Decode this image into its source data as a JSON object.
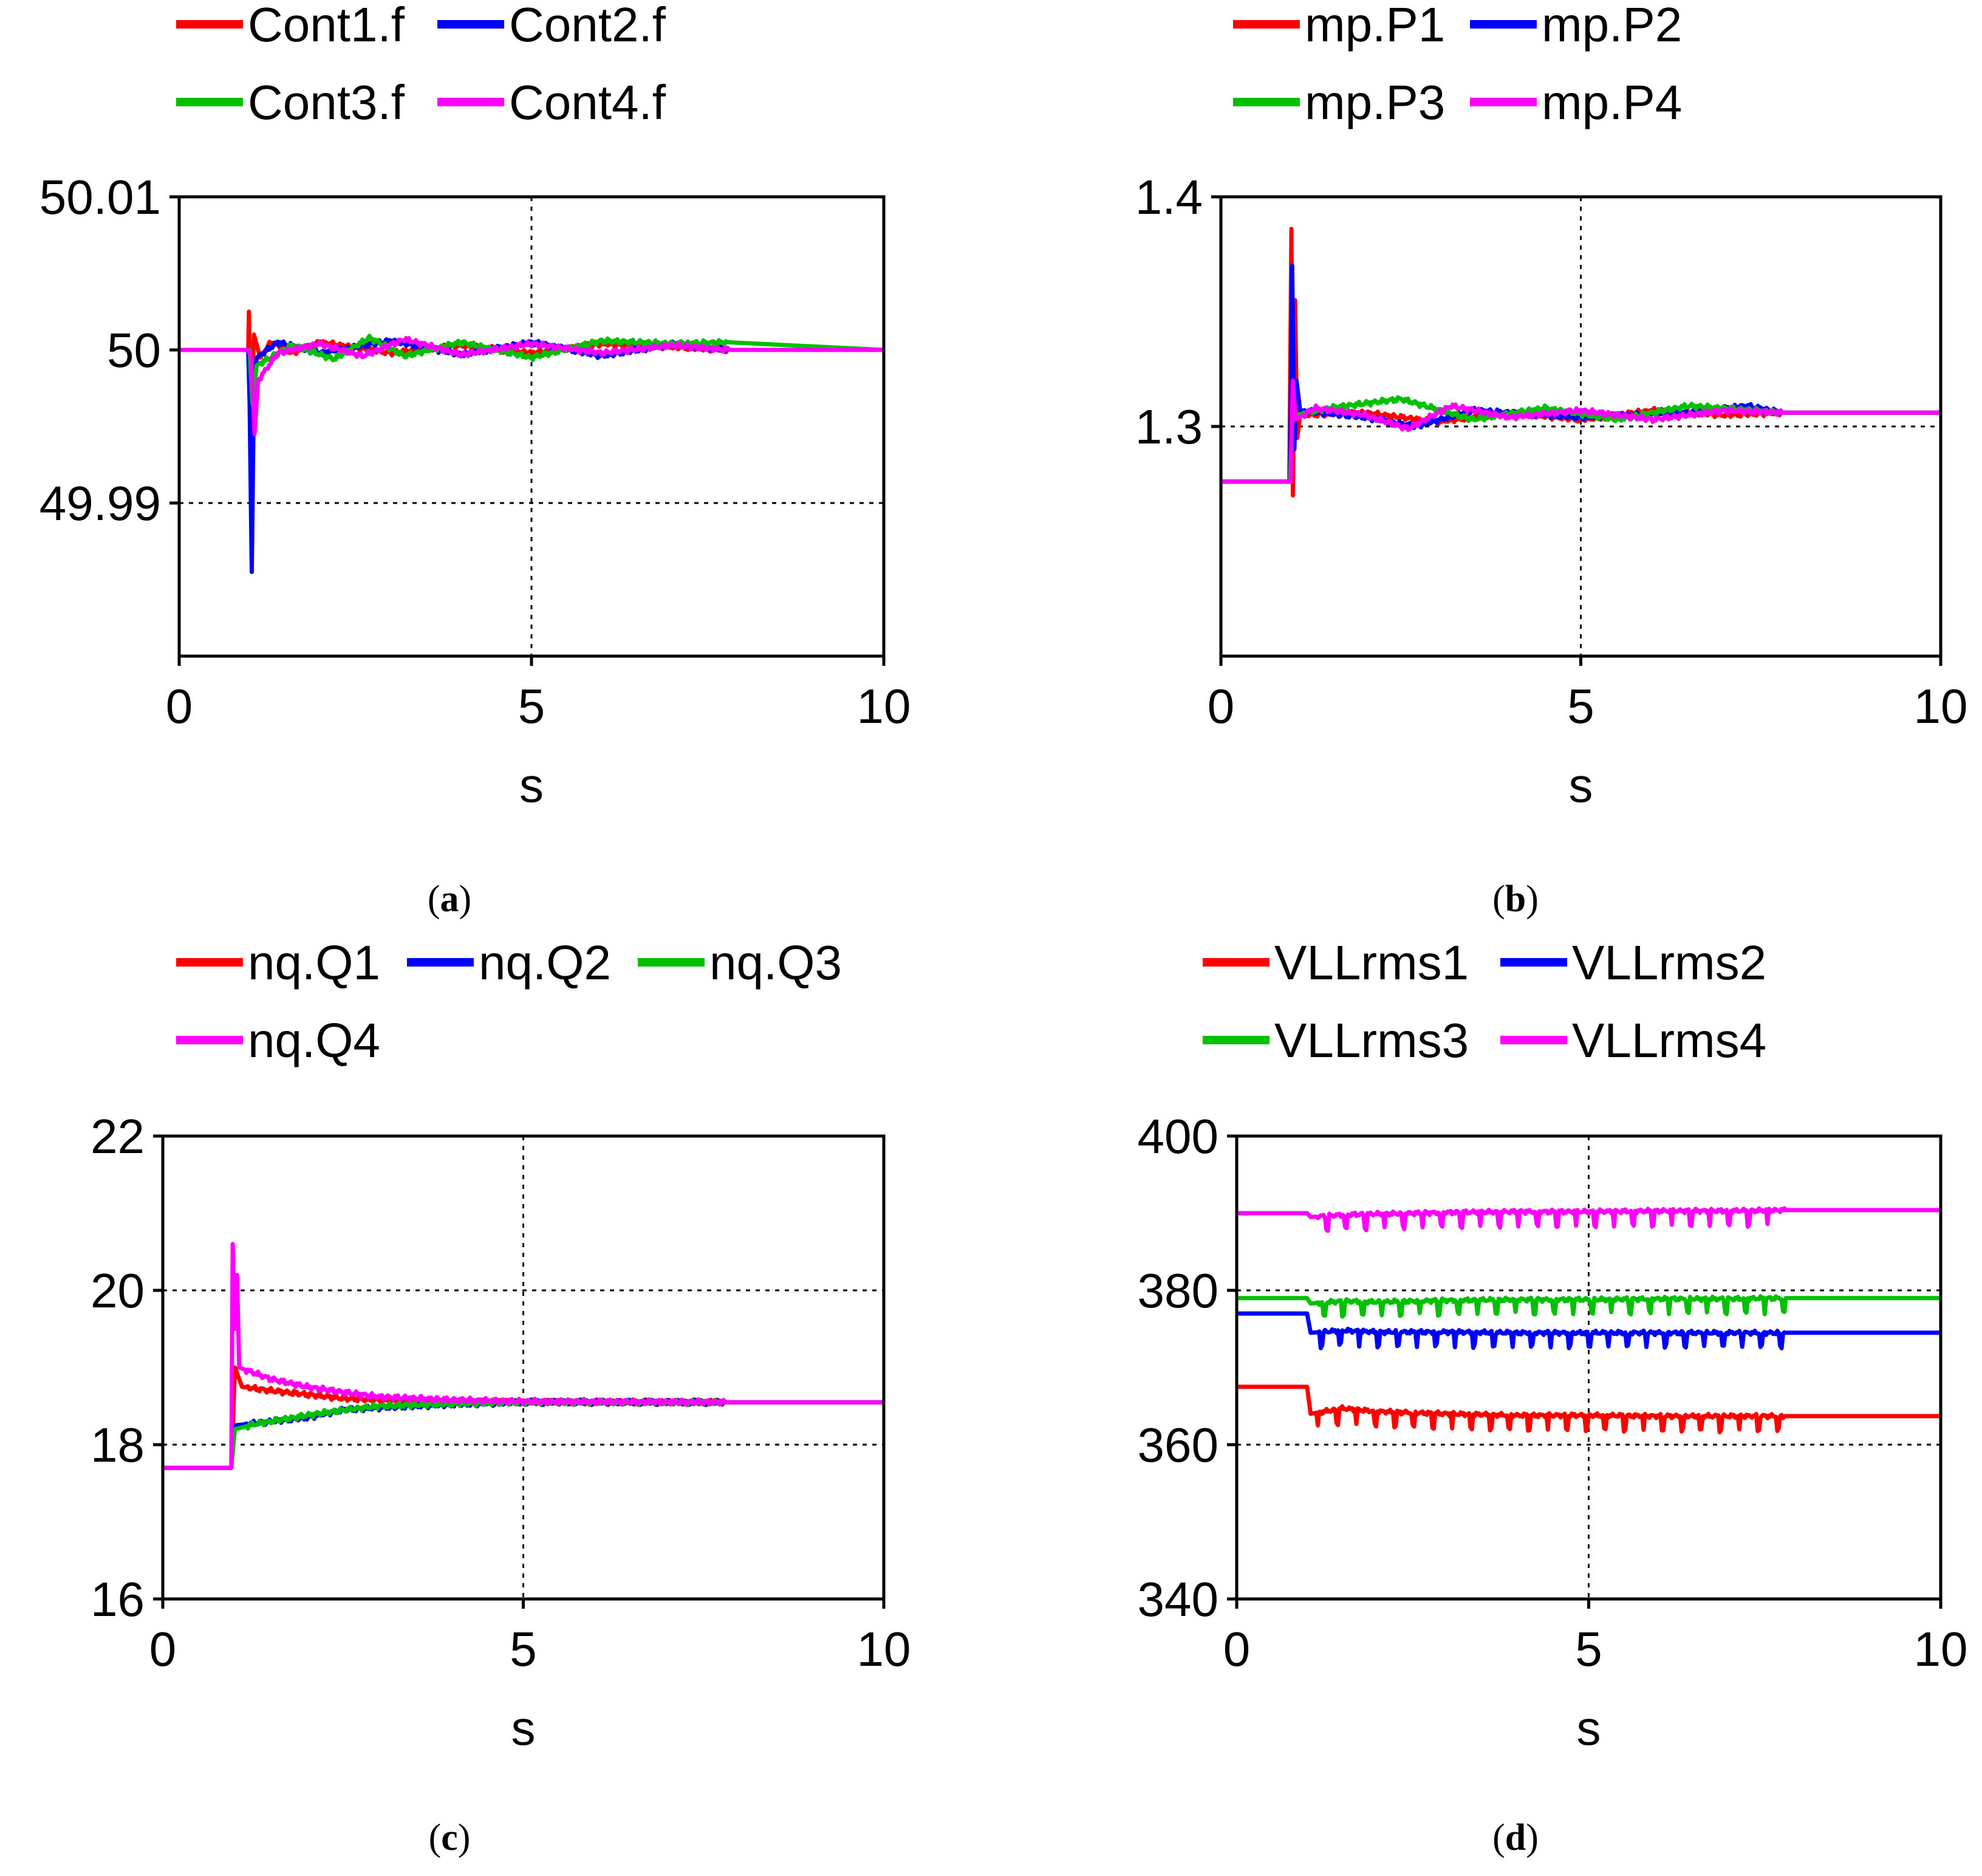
{
  "figure": {
    "panels": [
      "a",
      "b",
      "c",
      "d"
    ]
  },
  "chart_data": [
    {
      "id": "a",
      "type": "line",
      "caption": "a",
      "xlabel": "s",
      "ylabel": "",
      "xlim": [
        0,
        10
      ],
      "ylim": [
        49.98,
        50.01
      ],
      "xticks": [
        "0",
        "5",
        "10"
      ],
      "xtick_values": [
        0,
        5,
        10
      ],
      "yticks": [
        "50.01",
        "50",
        "49.99"
      ],
      "ytick_values": [
        50.01,
        50.0,
        49.99
      ],
      "grid_x": [
        5
      ],
      "grid_y": [
        49.99
      ],
      "legend": [
        [
          "Cont1.f",
          "Cont2.f"
        ],
        [
          "Cont3.f",
          "Cont4.f"
        ]
      ],
      "series": [
        {
          "name": "Cont1.f",
          "color": "#ff0000",
          "points": [
            [
              0,
              50
            ],
            [
              0.98,
              50
            ],
            [
              0.99,
              50.0025
            ],
            [
              1.0,
              49.9985
            ],
            [
              1.03,
              49.9965
            ],
            [
              1.06,
              50.001
            ],
            [
              1.15,
              49.9995
            ],
            [
              1.3,
              50.0005
            ],
            [
              1.6,
              49.9998
            ],
            [
              2.0,
              50.0005
            ],
            [
              3.0,
              49.9998
            ],
            [
              4.0,
              50.0003
            ],
            [
              5.0,
              49.9998
            ],
            [
              6.0,
              50.0004
            ],
            [
              7.0,
              50.0002
            ],
            [
              7.8,
              50.0
            ],
            [
              10,
              50.0
            ]
          ]
        },
        {
          "name": "Cont2.f",
          "color": "#0000ff",
          "points": [
            [
              0,
              50
            ],
            [
              0.98,
              50
            ],
            [
              1.0,
              49.9965
            ],
            [
              1.03,
              49.9855
            ],
            [
              1.06,
              49.9975
            ],
            [
              1.1,
              49.9995
            ],
            [
              1.4,
              50.0005
            ],
            [
              2.0,
              49.9998
            ],
            [
              3.0,
              50.0006
            ],
            [
              4.0,
              49.9997
            ],
            [
              5.0,
              50.0005
            ],
            [
              6.0,
              49.9996
            ],
            [
              7.0,
              50.0004
            ],
            [
              7.8,
              50.0
            ],
            [
              10,
              50.0
            ]
          ]
        },
        {
          "name": "Cont3.f",
          "color": "#00c000",
          "points": [
            [
              0,
              50
            ],
            [
              1.0,
              50
            ],
            [
              1.04,
              49.9965
            ],
            [
              1.1,
              49.999
            ],
            [
              1.6,
              50.0003
            ],
            [
              2.2,
              49.9994
            ],
            [
              2.7,
              50.0008
            ],
            [
              3.2,
              49.9996
            ],
            [
              4.0,
              50.0005
            ],
            [
              5.0,
              49.9995
            ],
            [
              6.0,
              50.0006
            ],
            [
              7.0,
              50.0004
            ],
            [
              7.8,
              50.0005
            ],
            [
              10,
              50.0
            ]
          ]
        },
        {
          "name": "Cont4.f",
          "color": "#ff00ff",
          "points": [
            [
              0,
              50
            ],
            [
              0.98,
              50
            ],
            [
              1.02,
              49.9995
            ],
            [
              1.07,
              49.9945
            ],
            [
              1.12,
              49.998
            ],
            [
              1.4,
              49.9998
            ],
            [
              2.0,
              50.0004
            ],
            [
              2.6,
              49.9996
            ],
            [
              3.2,
              50.0007
            ],
            [
              4.0,
              49.9997
            ],
            [
              5.0,
              50.0004
            ],
            [
              6.0,
              49.9998
            ],
            [
              7.0,
              50.0003
            ],
            [
              7.8,
              50.0
            ],
            [
              10,
              50.0
            ]
          ]
        }
      ]
    },
    {
      "id": "b",
      "type": "line",
      "caption": "b",
      "xlabel": "s",
      "ylabel": "",
      "xlim": [
        0,
        10
      ],
      "ylim": [
        1.2,
        1.4
      ],
      "xticks": [
        "0",
        "5",
        "10"
      ],
      "xtick_values": [
        0,
        5,
        10
      ],
      "yticks": [
        "1.4",
        "1.3"
      ],
      "ytick_values": [
        1.4,
        1.3
      ],
      "grid_x": [
        5
      ],
      "grid_y": [
        1.3
      ],
      "legend": [
        [
          "mp.P1",
          "mp.P2"
        ],
        [
          "mp.P3",
          "mp.P4"
        ]
      ],
      "series": [
        {
          "name": "mp.P1",
          "color": "#ff0000",
          "points": [
            [
              0,
              1.276
            ],
            [
              0.95,
              1.276
            ],
            [
              0.98,
              1.386
            ],
            [
              1.0,
              1.27
            ],
            [
              1.03,
              1.355
            ],
            [
              1.06,
              1.295
            ],
            [
              1.1,
              1.305
            ],
            [
              2.0,
              1.306
            ],
            [
              3.0,
              1.302
            ],
            [
              4.0,
              1.306
            ],
            [
              5.0,
              1.303
            ],
            [
              6.0,
              1.307
            ],
            [
              7.0,
              1.305
            ],
            [
              7.8,
              1.306
            ],
            [
              10,
              1.306
            ]
          ]
        },
        {
          "name": "mp.P2",
          "color": "#0000ff",
          "points": [
            [
              0,
              1.276
            ],
            [
              0.96,
              1.276
            ],
            [
              0.99,
              1.37
            ],
            [
              1.02,
              1.29
            ],
            [
              1.05,
              1.32
            ],
            [
              1.1,
              1.307
            ],
            [
              2.0,
              1.304
            ],
            [
              2.7,
              1.3
            ],
            [
              3.5,
              1.307
            ],
            [
              5.0,
              1.304
            ],
            [
              6.5,
              1.306
            ],
            [
              7.3,
              1.309
            ],
            [
              7.8,
              1.306
            ],
            [
              10,
              1.306
            ]
          ]
        },
        {
          "name": "mp.P3",
          "color": "#00c000",
          "points": [
            [
              0,
              1.276
            ],
            [
              0.96,
              1.276
            ],
            [
              1.0,
              1.31
            ],
            [
              1.05,
              1.305
            ],
            [
              1.5,
              1.308
            ],
            [
              2.5,
              1.312
            ],
            [
              3.5,
              1.303
            ],
            [
              4.5,
              1.308
            ],
            [
              5.5,
              1.303
            ],
            [
              6.5,
              1.309
            ],
            [
              7.8,
              1.306
            ],
            [
              10,
              1.306
            ]
          ]
        },
        {
          "name": "mp.P4",
          "color": "#ff00ff",
          "points": [
            [
              0,
              1.276
            ],
            [
              0.97,
              1.276
            ],
            [
              1.0,
              1.32
            ],
            [
              1.04,
              1.303
            ],
            [
              1.3,
              1.308
            ],
            [
              2.0,
              1.305
            ],
            [
              2.6,
              1.299
            ],
            [
              3.2,
              1.309
            ],
            [
              4.0,
              1.304
            ],
            [
              5.0,
              1.307
            ],
            [
              6.0,
              1.303
            ],
            [
              7.0,
              1.307
            ],
            [
              7.8,
              1.306
            ],
            [
              10,
              1.306
            ]
          ]
        }
      ]
    },
    {
      "id": "c",
      "type": "line",
      "caption": "c",
      "xlabel": "s",
      "ylabel": "",
      "xlim": [
        0,
        10
      ],
      "ylim": [
        16,
        22
      ],
      "xticks": [
        "0",
        "5",
        "10"
      ],
      "xtick_values": [
        0,
        5,
        10
      ],
      "yticks": [
        "22",
        "20",
        "18",
        "16"
      ],
      "ytick_values": [
        22,
        20,
        18,
        16
      ],
      "grid_x": [
        5
      ],
      "grid_y": [
        20,
        18
      ],
      "legend": [
        [
          "nq.Q1",
          "nq.Q2",
          "nq.Q3"
        ],
        [
          "nq.Q4"
        ]
      ],
      "series": [
        {
          "name": "nq.Q1",
          "color": "#ff0000",
          "points": [
            [
              0,
              17.7
            ],
            [
              0.95,
              17.7
            ],
            [
              1.0,
              19.0
            ],
            [
              1.1,
              18.75
            ],
            [
              1.5,
              18.7
            ],
            [
              2.0,
              18.65
            ],
            [
              2.5,
              18.6
            ],
            [
              3.0,
              18.58
            ],
            [
              4.0,
              18.55
            ],
            [
              5.0,
              18.55
            ],
            [
              7.8,
              18.55
            ],
            [
              10,
              18.55
            ]
          ]
        },
        {
          "name": "nq.Q2",
          "color": "#0000ff",
          "points": [
            [
              0,
              17.7
            ],
            [
              0.95,
              17.7
            ],
            [
              1.0,
              18.25
            ],
            [
              1.5,
              18.3
            ],
            [
              2.0,
              18.35
            ],
            [
              2.5,
              18.45
            ],
            [
              3.0,
              18.48
            ],
            [
              4.0,
              18.52
            ],
            [
              5.0,
              18.55
            ],
            [
              7.8,
              18.55
            ],
            [
              10,
              18.55
            ]
          ]
        },
        {
          "name": "nq.Q3",
          "color": "#00c000",
          "points": [
            [
              0,
              17.7
            ],
            [
              0.95,
              17.7
            ],
            [
              1.0,
              18.2
            ],
            [
              1.3,
              18.27
            ],
            [
              2.0,
              18.38
            ],
            [
              2.5,
              18.45
            ],
            [
              3.0,
              18.5
            ],
            [
              4.0,
              18.53
            ],
            [
              5.0,
              18.55
            ],
            [
              7.8,
              18.55
            ],
            [
              10,
              18.55
            ]
          ]
        },
        {
          "name": "nq.Q4",
          "color": "#ff00ff",
          "points": [
            [
              0,
              17.7
            ],
            [
              0.95,
              17.7
            ],
            [
              0.97,
              20.6
            ],
            [
              1.0,
              19.5
            ],
            [
              1.03,
              20.2
            ],
            [
              1.06,
              19.0
            ],
            [
              1.5,
              18.85
            ],
            [
              2.0,
              18.75
            ],
            [
              2.5,
              18.68
            ],
            [
              3.0,
              18.62
            ],
            [
              4.0,
              18.58
            ],
            [
              5.0,
              18.56
            ],
            [
              7.8,
              18.55
            ],
            [
              10,
              18.55
            ]
          ]
        }
      ]
    },
    {
      "id": "d",
      "type": "line",
      "caption": "d",
      "xlabel": "s",
      "ylabel": "",
      "xlim": [
        0,
        10
      ],
      "ylim": [
        340,
        400
      ],
      "xticks": [
        "0",
        "5",
        "10"
      ],
      "xtick_values": [
        0,
        5,
        10
      ],
      "yticks": [
        "400",
        "380",
        "360",
        "340"
      ],
      "ytick_values": [
        400,
        380,
        360,
        340
      ],
      "grid_x": [
        5
      ],
      "grid_y": [
        380,
        360
      ],
      "legend": [
        [
          "VLLrms1",
          "VLLrms2"
        ],
        [
          "VLLrms3",
          "VLLrms4"
        ]
      ],
      "series": [
        {
          "name": "VLLrms1",
          "color": "#ff0000",
          "points": [
            [
              0,
              367.5
            ],
            [
              1.0,
              367.5
            ],
            [
              1.05,
              364
            ],
            [
              1.5,
              364.7
            ],
            [
              2.0,
              364.3
            ],
            [
              3.0,
              364.0
            ],
            [
              4.0,
              363.8
            ],
            [
              5.0,
              363.8
            ],
            [
              6.0,
              363.7
            ],
            [
              7.0,
              363.7
            ],
            [
              7.8,
              363.7
            ],
            [
              10,
              363.7
            ]
          ]
        },
        {
          "name": "VLLrms2",
          "color": "#0000ff",
          "points": [
            [
              0,
              377
            ],
            [
              1.0,
              377
            ],
            [
              1.05,
              374.5
            ],
            [
              1.5,
              374.8
            ],
            [
              2.0,
              374.6
            ],
            [
              3.0,
              374.6
            ],
            [
              4.0,
              374.5
            ],
            [
              5.0,
              374.5
            ],
            [
              6.0,
              374.5
            ],
            [
              7.0,
              374.5
            ],
            [
              7.8,
              374.5
            ],
            [
              10,
              374.5
            ]
          ]
        },
        {
          "name": "VLLrms3",
          "color": "#00c000",
          "points": [
            [
              0,
              379
            ],
            [
              1.0,
              379
            ],
            [
              1.05,
              378.3
            ],
            [
              1.5,
              378.6
            ],
            [
              2.0,
              378.5
            ],
            [
              3.0,
              378.7
            ],
            [
              4.0,
              378.8
            ],
            [
              5.0,
              378.8
            ],
            [
              6.0,
              378.9
            ],
            [
              7.0,
              378.9
            ],
            [
              7.8,
              379
            ],
            [
              10,
              379
            ]
          ]
        },
        {
          "name": "VLLrms4",
          "color": "#ff00ff",
          "points": [
            [
              0,
              390
            ],
            [
              1.0,
              390
            ],
            [
              1.05,
              389.5
            ],
            [
              1.5,
              389.8
            ],
            [
              2.0,
              389.9
            ],
            [
              3.0,
              390.1
            ],
            [
              4.0,
              390.2
            ],
            [
              5.0,
              390.2
            ],
            [
              6.0,
              390.3
            ],
            [
              7.0,
              390.3
            ],
            [
              7.8,
              390.4
            ],
            [
              10,
              390.4
            ]
          ]
        }
      ]
    }
  ]
}
